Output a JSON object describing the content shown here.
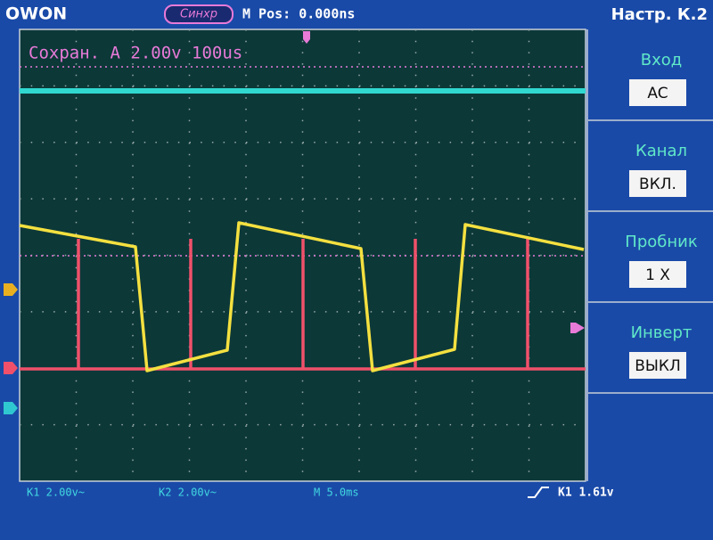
{
  "header": {
    "brand": "OWON",
    "trigger_status": "Синхр",
    "position": "M Pos: 0.000ns",
    "menu_title": "Настр. К.2"
  },
  "screen": {
    "info": "Сохран. A 2.00v 100us"
  },
  "menu": [
    {
      "label": "Вход",
      "value": "AC"
    },
    {
      "label": "Канал",
      "value": "ВКЛ."
    },
    {
      "label": "Пробник",
      "value": "1 X"
    },
    {
      "label": "Инверт",
      "value": "ВЫКЛ"
    }
  ],
  "footer": {
    "ch1": "K1 2.00v~",
    "ch2": "K2 2.00v~",
    "timebase": "M 5.0ms",
    "trigger": "K1 1.61v"
  }
}
